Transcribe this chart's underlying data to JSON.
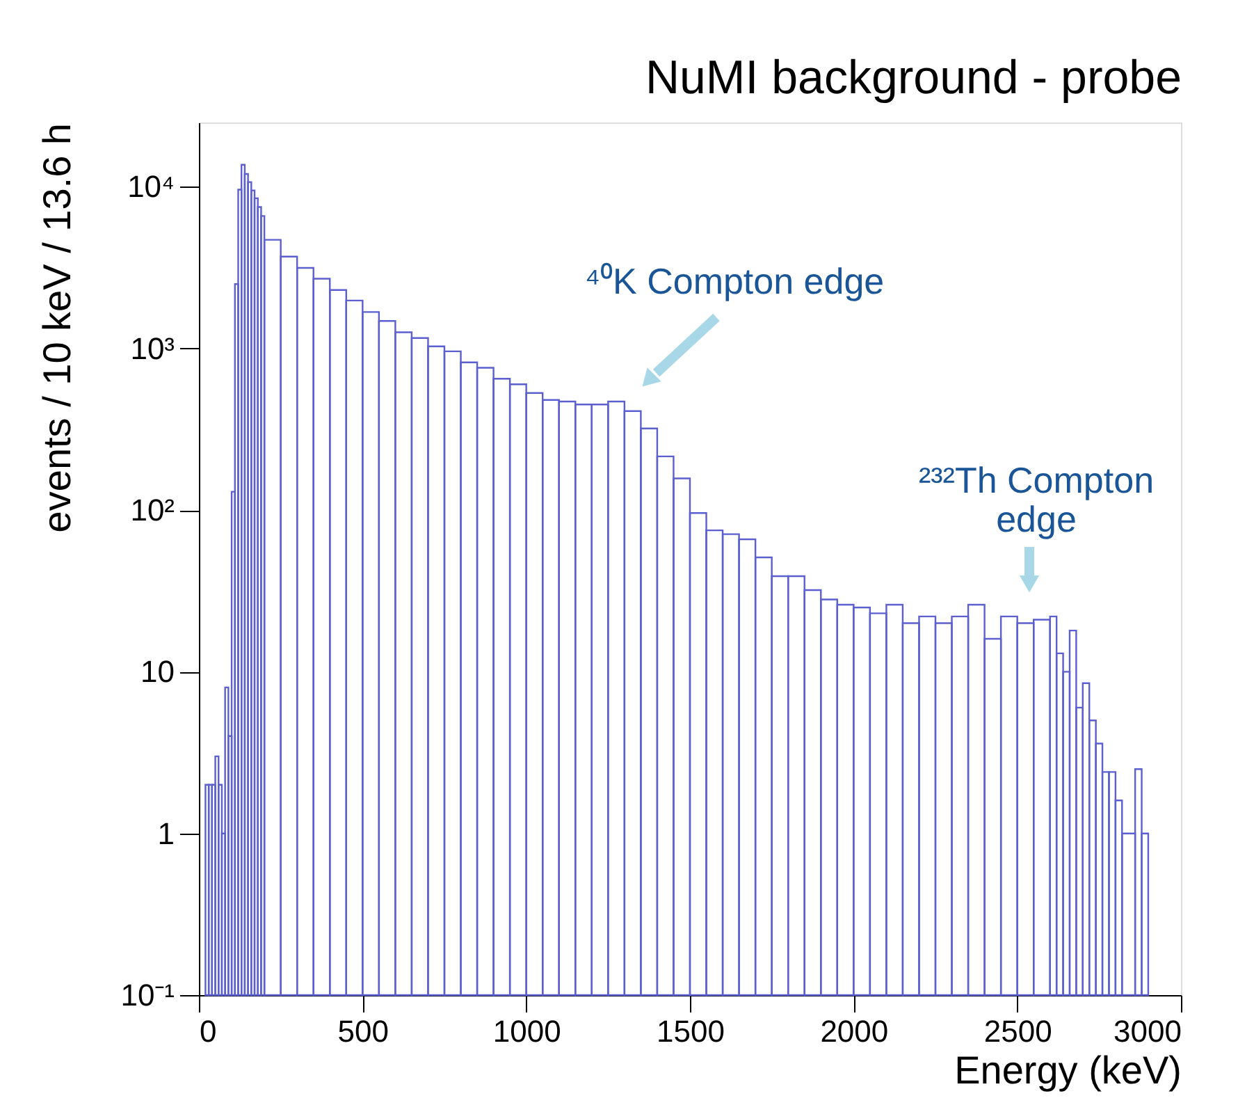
{
  "chart_data": {
    "type": "histogram",
    "title": "NuMI background - probe",
    "xlabel": "Energy (keV)",
    "ylabel": "events / 10 keV / 13.6 h",
    "bins": [
      20,
      30,
      40,
      50,
      60,
      70,
      80,
      90,
      100,
      110,
      120,
      130,
      140,
      150,
      160,
      170,
      180,
      190,
      200,
      250,
      300,
      350,
      400,
      450,
      500,
      550,
      600,
      650,
      700,
      750,
      800,
      850,
      900,
      950,
      1000,
      1050,
      1100,
      1150,
      1200,
      1250,
      1300,
      1350,
      1400,
      1450,
      1500,
      1550,
      1600,
      1650,
      1700,
      1750,
      1800,
      1850,
      1900,
      1950,
      2000,
      2050,
      2100,
      2150,
      2200,
      2250,
      2300,
      2350,
      2400,
      2450,
      2500,
      2550,
      2600,
      2620,
      2640,
      2660,
      2680,
      2700,
      2720,
      2740,
      2760,
      2780,
      2800,
      2820,
      2860,
      2880,
      2900
    ],
    "values": [
      2,
      2,
      2,
      3,
      2,
      1,
      8,
      4,
      130,
      2500,
      9600,
      13700,
      12000,
      10700,
      9500,
      8500,
      7500,
      6600,
      4700,
      3700,
      3150,
      2700,
      2300,
      1980,
      1680,
      1480,
      1260,
      1160,
      1030,
      960,
      820,
      760,
      650,
      600,
      530,
      480,
      470,
      450,
      450,
      470,
      410,
      320,
      215,
      157,
      96,
      75,
      71,
      66,
      51,
      39,
      39,
      32,
      28,
      26,
      25,
      23,
      26,
      20,
      22,
      20,
      22,
      26,
      16,
      22,
      20,
      21,
      22,
      13,
      10,
      18,
      6,
      8.5,
      5,
      3.6,
      2.4,
      2.4,
      1.6,
      1,
      2.5,
      1
    ],
    "color": "#5b5fcf",
    "log": "y",
    "grid": false,
    "xlim": [
      0,
      3000
    ],
    "xticks": [
      0,
      500,
      1000,
      1500,
      2000,
      2500,
      3000
    ],
    "ylim": [
      0.1,
      25000
    ],
    "yticks": [
      {
        "value": 0.1,
        "label": "10⁻¹"
      },
      1,
      10,
      {
        "value": 100,
        "label": "10²"
      },
      {
        "value": 1000,
        "label": "10³"
      },
      {
        "value": 10000,
        "label": "10⁴"
      }
    ],
    "annotations": [
      "⁴⁰K Compton edge",
      "²³²Th Compton\nedge"
    ]
  }
}
